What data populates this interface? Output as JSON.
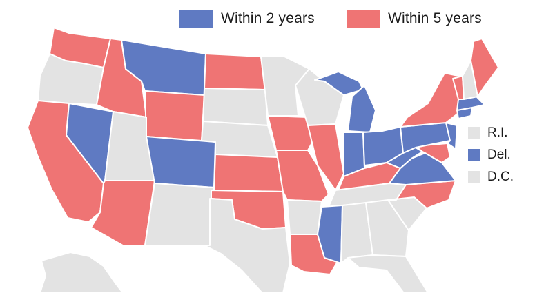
{
  "legend": {
    "within_2": {
      "label": "Within 2 years",
      "color": "#5f7ac2"
    },
    "within_5": {
      "label": "Within 5 years",
      "color": "#ef7474"
    },
    "none_color": "#e3e3e3"
  },
  "small_states": [
    {
      "label": "R.I.",
      "category": "none"
    },
    {
      "label": "Del.",
      "category": "within_2"
    },
    {
      "label": "D.C.",
      "category": "none"
    }
  ],
  "states": {
    "WA": "within_5",
    "OR": "none",
    "CA": "within_5",
    "NV": "within_2",
    "ID": "within_5",
    "MT": "within_2",
    "WY": "within_5",
    "UT": "none",
    "AZ": "within_5",
    "CO": "within_2",
    "NM": "none",
    "ND": "within_5",
    "SD": "none",
    "NE": "none",
    "KS": "within_5",
    "OK": "within_5",
    "TX": "none",
    "MN": "none",
    "IA": "within_5",
    "MO": "within_5",
    "AR": "none",
    "LA": "within_5",
    "WI": "none",
    "IL": "within_5",
    "MI": "within_2",
    "IN": "within_2",
    "OH": "within_2",
    "KY": "within_5",
    "TN": "none",
    "MS": "within_2",
    "AL": "none",
    "GA": "none",
    "FL": "none",
    "SC": "none",
    "NC": "within_5",
    "VA": "within_2",
    "WV": "within_2",
    "MD": "within_5",
    "PA": "within_2",
    "NJ": "within_2",
    "NY": "within_5",
    "CT": "within_2",
    "MA": "within_2",
    "VT": "within_5",
    "NH": "none",
    "ME": "within_5",
    "AK": "none"
  }
}
